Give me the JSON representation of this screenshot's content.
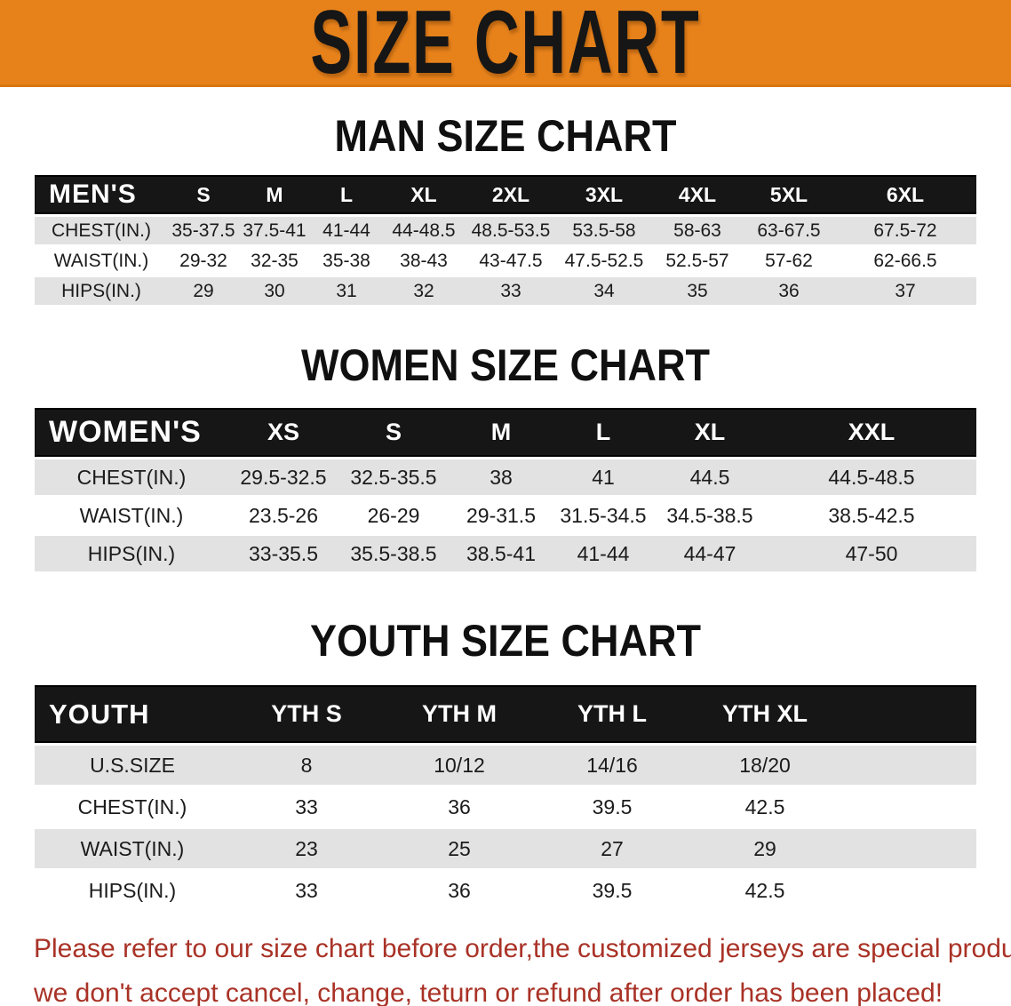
{
  "banner": {
    "title": "SIZE CHART",
    "bg_color": "#E7821B",
    "text_color": "#161616"
  },
  "colors": {
    "table_header_bg": "#161616",
    "table_header_text": "#ffffff",
    "stripe_gray": "#e2e2e2",
    "note_red": "#A93226"
  },
  "sections": [
    {
      "id": "mens",
      "heading": "MAN SIZE CHART",
      "table": {
        "corner_label": "MEN'S",
        "columns": [
          "S",
          "M",
          "L",
          "XL",
          "2XL",
          "3XL",
          "4XL",
          "5XL",
          "6XL"
        ],
        "rows": [
          {
            "label": "CHEST(IN.)",
            "values": [
              "35-37.5",
              "37.5-41",
              "41-44",
              "44-48.5",
              "48.5-53.5",
              "53.5-58",
              "58-63",
              "63-67.5",
              "67.5-72"
            ]
          },
          {
            "label": "WAIST(IN.)",
            "values": [
              "29-32",
              "32-35",
              "35-38",
              "38-43",
              "43-47.5",
              "47.5-52.5",
              "52.5-57",
              "57-62",
              "62-66.5"
            ]
          },
          {
            "label": "HIPS(IN.)",
            "values": [
              "29",
              "30",
              "31",
              "32",
              "33",
              "34",
              "35",
              "36",
              "37"
            ]
          }
        ]
      }
    },
    {
      "id": "womens",
      "heading": "WOMEN SIZE CHART",
      "table": {
        "corner_label": "WOMEN'S",
        "columns": [
          "XS",
          "S",
          "M",
          "L",
          "XL",
          "XXL"
        ],
        "rows": [
          {
            "label": "CHEST(IN.)",
            "values": [
              "29.5-32.5",
              "32.5-35.5",
              "38",
              "41",
              "44.5",
              "44.5-48.5"
            ]
          },
          {
            "label": "WAIST(IN.)",
            "values": [
              "23.5-26",
              "26-29",
              "29-31.5",
              "31.5-34.5",
              "34.5-38.5",
              "38.5-42.5"
            ]
          },
          {
            "label": "HIPS(IN.)",
            "values": [
              "33-35.5",
              "35.5-38.5",
              "38.5-41",
              "41-44",
              "44-47",
              "47-50"
            ]
          }
        ]
      }
    },
    {
      "id": "youth",
      "heading": "YOUTH SIZE CHART",
      "table": {
        "corner_label": "YOUTH",
        "columns": [
          "YTH S",
          "YTH M",
          "YTH L",
          "YTH XL"
        ],
        "rows": [
          {
            "label": "U.S.SIZE",
            "values": [
              "8",
              "10/12",
              "14/16",
              "18/20"
            ]
          },
          {
            "label": "CHEST(IN.)",
            "values": [
              "33",
              "36",
              "39.5",
              "42.5"
            ]
          },
          {
            "label": "WAIST(IN.)",
            "values": [
              "23",
              "25",
              "27",
              "29"
            ]
          },
          {
            "label": "HIPS(IN.)",
            "values": [
              "33",
              "36",
              "39.5",
              "42.5"
            ]
          }
        ]
      }
    }
  ],
  "footer_note": {
    "line1": "Please refer to our size chart before order,the customized jerseys are special products,",
    "line2": "we don't accept cancel, change, teturn or refund after order has been placed!"
  }
}
